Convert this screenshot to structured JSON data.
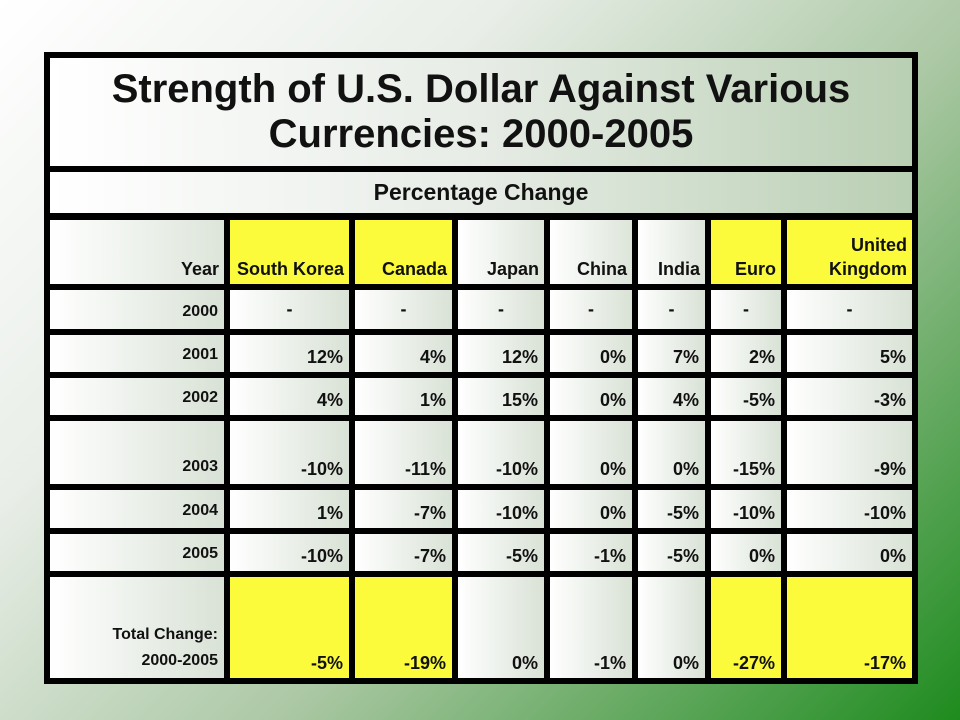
{
  "chart_data": {
    "type": "table",
    "title": "Strength of U.S. Dollar Against Various Currencies: 2000-2005",
    "subtitle": "Percentage Change",
    "row_header_label": "Year",
    "columns": [
      "South Korea",
      "Canada",
      "Japan",
      "China",
      "India",
      "Euro",
      "United Kingdom"
    ],
    "highlighted_columns": [
      "South Korea",
      "Canada",
      "Euro",
      "United Kingdom"
    ],
    "rows": [
      {
        "year": "2000",
        "values": [
          "-",
          "-",
          "-",
          "-",
          "-",
          "-",
          "-"
        ]
      },
      {
        "year": "2001",
        "values": [
          "12%",
          "4%",
          "12%",
          "0%",
          "7%",
          "2%",
          "5%"
        ]
      },
      {
        "year": "2002",
        "values": [
          "4%",
          "1%",
          "15%",
          "0%",
          "4%",
          "-5%",
          "-3%"
        ]
      },
      {
        "year": "2003",
        "values": [
          "-10%",
          "-11%",
          "-10%",
          "0%",
          "0%",
          "-15%",
          "-9%"
        ]
      },
      {
        "year": "2004",
        "values": [
          "1%",
          "-7%",
          "-10%",
          "0%",
          "-5%",
          "-10%",
          "-10%"
        ]
      },
      {
        "year": "2005",
        "values": [
          "-10%",
          "-7%",
          "-5%",
          "-1%",
          "-5%",
          "0%",
          "0%"
        ]
      }
    ],
    "total_row": {
      "label": "Total Change: 2000-2005",
      "values": [
        "-5%",
        "-19%",
        "0%",
        "-1%",
        "0%",
        "-27%",
        "-17%"
      ]
    }
  },
  "colors": {
    "highlight": "#fbfb3c",
    "border": "#000000",
    "background_accent": "#1e8b1e"
  }
}
